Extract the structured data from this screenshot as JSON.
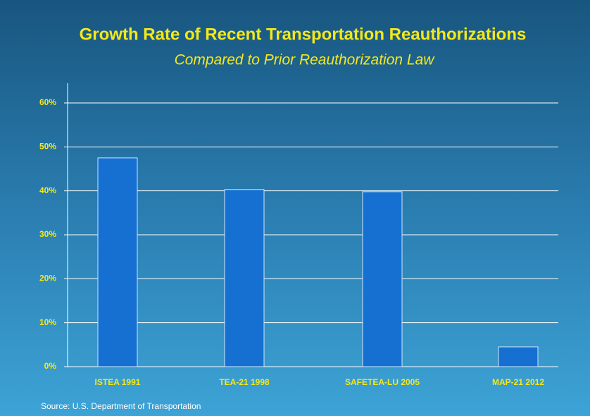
{
  "chart_data": {
    "type": "bar",
    "title": "Growth Rate of Recent Transportation Reauthorizations",
    "subtitle": "Compared to Prior Reauthorization Law",
    "source": "Source: U.S. Department of Transportation",
    "categories": [
      "ISTEA 1991",
      "TEA-21 1998",
      "SAFETEA-LU 2005",
      "MAP-21 2012"
    ],
    "values": [
      47.5,
      40.3,
      39.8,
      4.5
    ],
    "color": "#1670d2",
    "ylim": [
      0,
      60
    ],
    "yticks": [
      {
        "value": 0,
        "label": "0%"
      },
      {
        "value": 10,
        "label": "10%"
      },
      {
        "value": 20,
        "label": "20%"
      },
      {
        "value": 30,
        "label": "30%"
      },
      {
        "value": 40,
        "label": "40%"
      },
      {
        "value": 50,
        "label": "50%"
      },
      {
        "value": 60,
        "label": "60%"
      }
    ],
    "grid": true
  }
}
